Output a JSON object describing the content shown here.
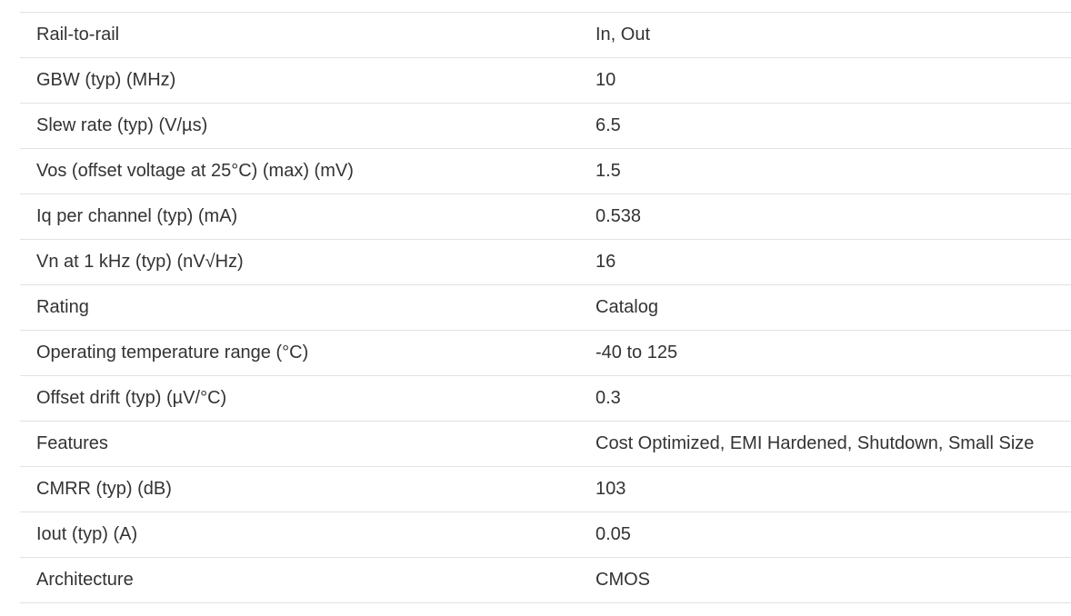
{
  "spec_table": {
    "rows": [
      {
        "param": "Rail-to-rail",
        "value": "In, Out"
      },
      {
        "param": "GBW (typ) (MHz)",
        "value": "10"
      },
      {
        "param": "Slew rate (typ) (V/µs)",
        "value": "6.5"
      },
      {
        "param": "Vos (offset voltage at 25°C) (max) (mV)",
        "value": "1.5"
      },
      {
        "param": "Iq per channel (typ) (mA)",
        "value": "0.538"
      },
      {
        "param": "Vn at 1 kHz (typ) (nV√Hz)",
        "value": "16"
      },
      {
        "param": "Rating",
        "value": "Catalog"
      },
      {
        "param": "Operating temperature range (°C)",
        "value": "-40 to 125"
      },
      {
        "param": "Offset drift (typ) (µV/°C)",
        "value": "0.3"
      },
      {
        "param": "Features",
        "value": "Cost Optimized, EMI Hardened, Shutdown, Small Size"
      },
      {
        "param": "CMRR (typ) (dB)",
        "value": "103"
      },
      {
        "param": "Iout (typ) (A)",
        "value": "0.05"
      },
      {
        "param": "Architecture",
        "value": "CMOS"
      }
    ]
  }
}
